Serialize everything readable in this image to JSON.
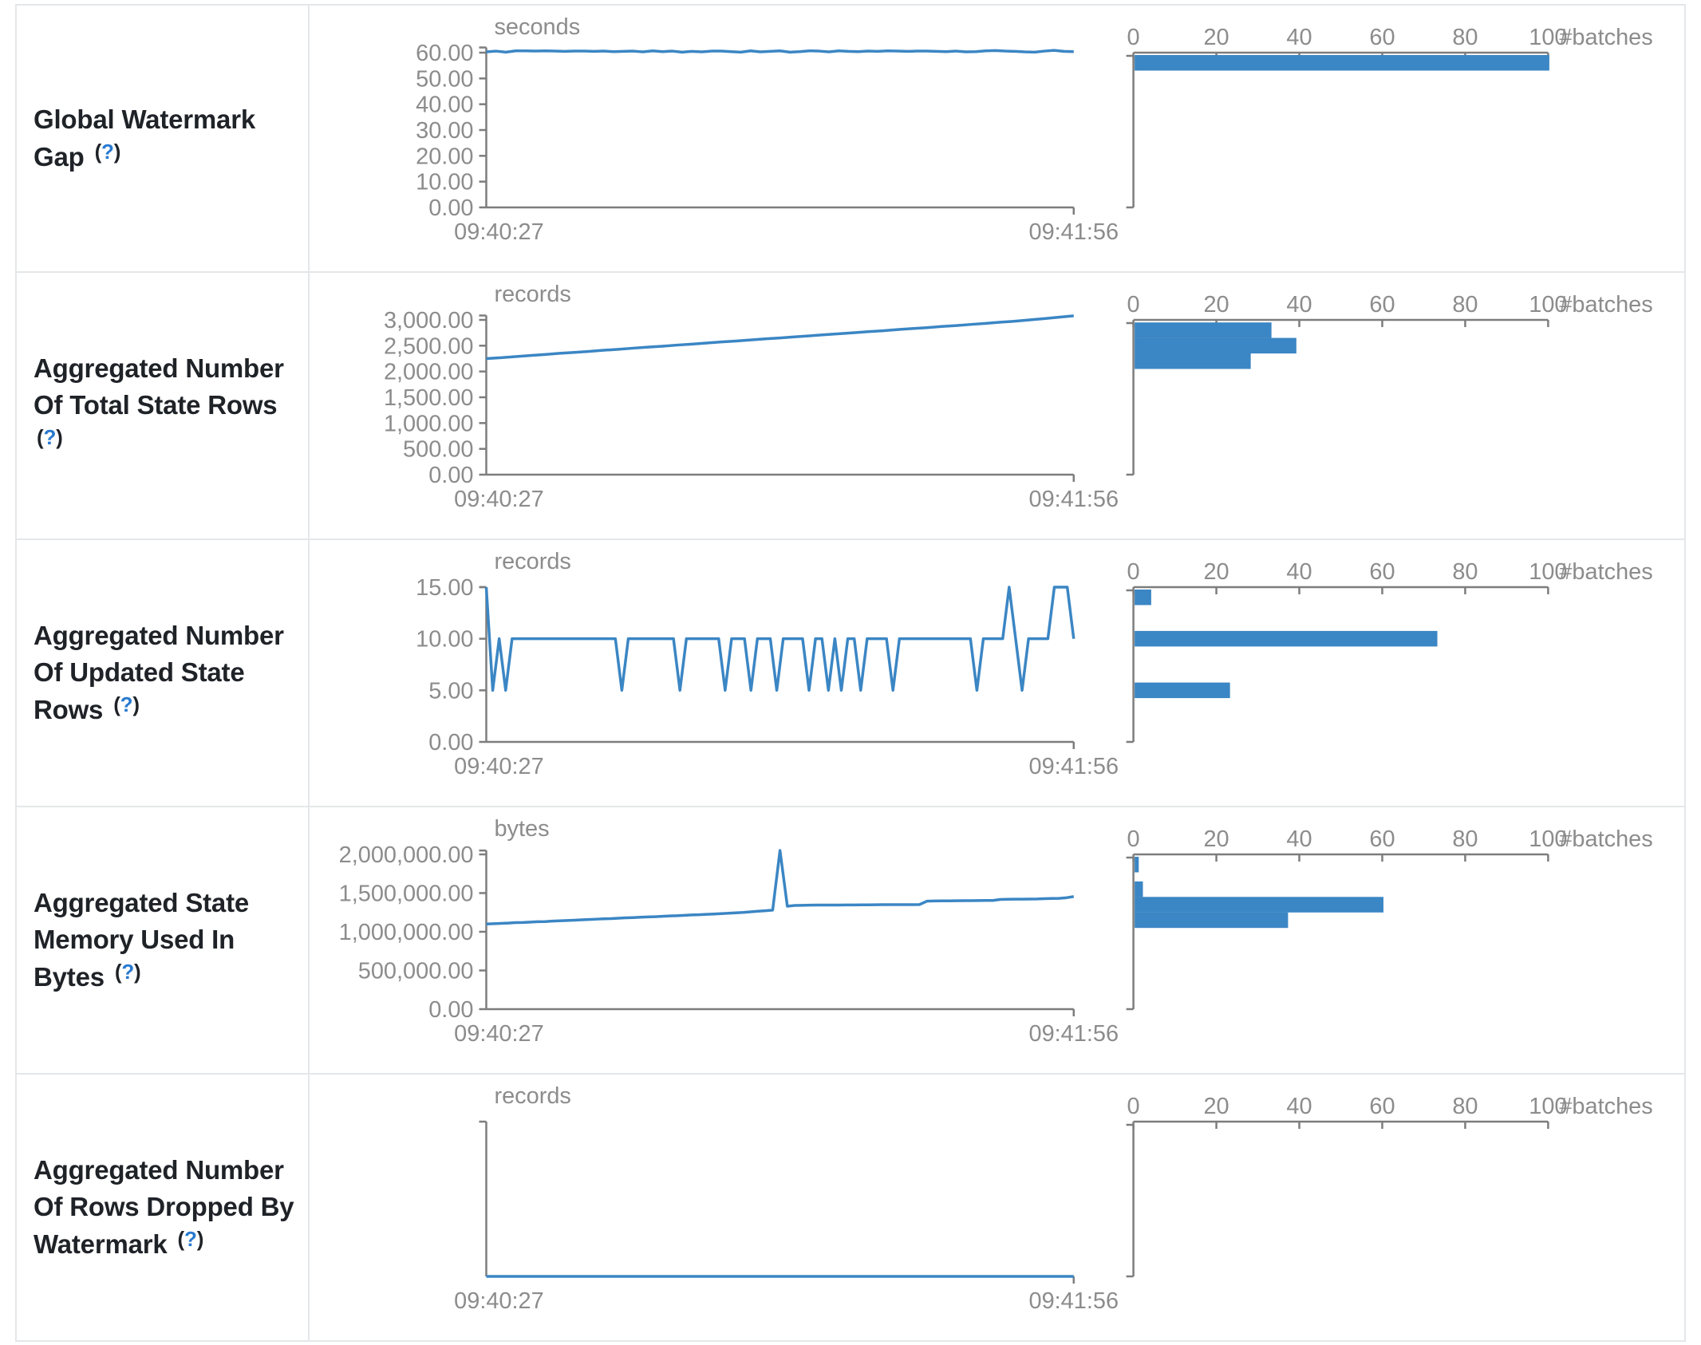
{
  "strings": {
    "paren_open": "(",
    "question": "?",
    "paren_close": ")"
  },
  "colors": {
    "accent": "#3b86c4",
    "axis": "#7d7d7d",
    "tick_text": "#8c8c8c",
    "label_text": "#1f2328",
    "help_blue": "#2779d0",
    "border": "#e4e7e9"
  },
  "histogram_axis": {
    "ticks": [
      {
        "value": 0,
        "label": "0"
      },
      {
        "value": 20,
        "label": "20"
      },
      {
        "value": 40,
        "label": "40"
      },
      {
        "value": 60,
        "label": "60"
      },
      {
        "value": 80,
        "label": "80"
      },
      {
        "value": 100,
        "label": "100"
      }
    ],
    "max": 100,
    "label": "#batches"
  },
  "rows": [
    {
      "label": "Global Watermark Gap",
      "chart_data": {
        "type": "line+histogram",
        "unit": "seconds",
        "x_range": [
          "09:40:27",
          "09:41:56"
        ],
        "y_ticks": [
          {
            "value": 60,
            "label": "60.00"
          },
          {
            "value": 50,
            "label": "50.00"
          },
          {
            "value": 40,
            "label": "40.00"
          },
          {
            "value": 30,
            "label": "30.00"
          },
          {
            "value": 20,
            "label": "20.00"
          },
          {
            "value": 10,
            "label": "10.00"
          },
          {
            "value": 0,
            "label": "0.00"
          }
        ],
        "domain_top": 62,
        "values": [
          60.3,
          60.6,
          60.2,
          60.7,
          60.7,
          60.6,
          60.7,
          60.6,
          60.5,
          60.6,
          60.6,
          60.5,
          60.6,
          60.4,
          60.5,
          60.6,
          60.3,
          60.7,
          60.4,
          60.6,
          60.2,
          60.5,
          60.3,
          60.6,
          60.6,
          60.4,
          60.2,
          60.7,
          60.3,
          60.5,
          60.7,
          60.2,
          60.4,
          60.7,
          60.6,
          60.3,
          60.7,
          60.5,
          60.4,
          60.6,
          60.5,
          60.7,
          60.6,
          60.5,
          60.6,
          60.6,
          60.5,
          60.4,
          60.6,
          60.3,
          60.4,
          60.7,
          60.8,
          60.6,
          60.5,
          60.3,
          60.2,
          60.6,
          60.9,
          60.5,
          60.4
        ],
        "histogram": {
          "bins": [
            {
              "center": 59.5,
              "count": 100
            }
          ]
        }
      }
    },
    {
      "label": "Aggregated Number Of Total State Rows",
      "chart_data": {
        "type": "line+histogram",
        "unit": "records",
        "x_range": [
          "09:40:27",
          "09:41:56"
        ],
        "y_ticks": [
          {
            "value": 3000,
            "label": "3,000.00"
          },
          {
            "value": 2500,
            "label": "2,500.00"
          },
          {
            "value": 2000,
            "label": "2,000.00"
          },
          {
            "value": 1500,
            "label": "1,500.00"
          },
          {
            "value": 1000,
            "label": "1,000.00"
          },
          {
            "value": 500,
            "label": "500.00"
          },
          {
            "value": 0,
            "label": "0.00"
          }
        ],
        "domain_top": 3085,
        "values": [
          2250,
          2268,
          2288,
          2310,
          2330,
          2352,
          2370,
          2390,
          2412,
          2430,
          2452,
          2472,
          2490,
          2512,
          2530,
          2552,
          2572,
          2590,
          2612,
          2632,
          2650,
          2672,
          2690,
          2712,
          2732,
          2750,
          2772,
          2790,
          2812,
          2832,
          2850,
          2872,
          2890,
          2912,
          2932,
          2955,
          2975,
          3000,
          3025,
          3052,
          3080
        ],
        "histogram": {
          "bins": [
            {
              "center": 2800,
              "count": 33
            },
            {
              "center": 2500,
              "count": 39
            },
            {
              "center": 2200,
              "count": 28
            }
          ]
        }
      }
    },
    {
      "label": "Aggregated Number Of Updated State Rows",
      "chart_data": {
        "type": "line+histogram",
        "unit": "records",
        "x_range": [
          "09:40:27",
          "09:41:56"
        ],
        "y_ticks": [
          {
            "value": 15,
            "label": "15.00"
          },
          {
            "value": 10,
            "label": "10.00"
          },
          {
            "value": 5,
            "label": "5.00"
          },
          {
            "value": 0,
            "label": "0.00"
          }
        ],
        "domain_top": 15,
        "values": [
          15,
          5,
          10,
          5,
          10,
          10,
          10,
          10,
          10,
          10,
          10,
          10,
          10,
          10,
          10,
          10,
          10,
          10,
          10,
          10,
          10,
          5,
          10,
          10,
          10,
          10,
          10,
          10,
          10,
          10,
          5,
          10,
          10,
          10,
          10,
          10,
          10,
          5,
          10,
          10,
          10,
          5,
          10,
          10,
          10,
          5,
          10,
          10,
          10,
          10,
          5,
          10,
          10,
          5,
          10,
          5,
          10,
          10,
          5,
          10,
          10,
          10,
          10,
          5,
          10,
          10,
          10,
          10,
          10,
          10,
          10,
          10,
          10,
          10,
          10,
          10,
          5,
          10,
          10,
          10,
          10,
          15,
          10,
          5,
          10,
          10,
          10,
          10,
          15,
          15,
          15,
          10
        ],
        "histogram": {
          "bins": [
            {
              "center": 15,
              "count": 4
            },
            {
              "center": 10,
              "count": 73
            },
            {
              "center": 5,
              "count": 23
            }
          ]
        }
      }
    },
    {
      "label": "Aggregated State Memory Used In Bytes",
      "chart_data": {
        "type": "line+histogram",
        "unit": "bytes",
        "x_range": [
          "09:40:27",
          "09:41:56"
        ],
        "y_ticks": [
          {
            "value": 2000000,
            "label": "2,000,000.00"
          },
          {
            "value": 1500000,
            "label": "1,500,000.00"
          },
          {
            "value": 1000000,
            "label": "1,000,000.00"
          },
          {
            "value": 500000,
            "label": "500,000.00"
          },
          {
            "value": 0,
            "label": "0.00"
          }
        ],
        "domain_top": 2050000,
        "values": [
          1100000,
          1105000,
          1108000,
          1112000,
          1118000,
          1120000,
          1125000,
          1130000,
          1132000,
          1138000,
          1142000,
          1145000,
          1150000,
          1155000,
          1158000,
          1163000,
          1168000,
          1170000,
          1175000,
          1180000,
          1183000,
          1188000,
          1192000,
          1195000,
          1200000,
          1205000,
          1208000,
          1213000,
          1218000,
          1220000,
          1225000,
          1230000,
          1235000,
          1240000,
          1245000,
          1250000,
          1258000,
          1265000,
          1272000,
          1280000,
          2050000,
          1330000,
          1340000,
          1342000,
          1344000,
          1345000,
          1345000,
          1346000,
          1346000,
          1347000,
          1347000,
          1348000,
          1348000,
          1349000,
          1350000,
          1350000,
          1350000,
          1351000,
          1351000,
          1352000,
          1395000,
          1398000,
          1400000,
          1400000,
          1401000,
          1402000,
          1402000,
          1403000,
          1404000,
          1405000,
          1418000,
          1420000,
          1421000,
          1422000,
          1423000,
          1424000,
          1428000,
          1430000,
          1432000,
          1440000,
          1455000
        ],
        "histogram": {
          "bins": [
            {
              "center": 1950000,
              "count": 1
            },
            {
              "center": 1550000,
              "count": 2
            },
            {
              "center": 1350000,
              "count": 60
            },
            {
              "center": 1150000,
              "count": 37
            }
          ]
        }
      }
    },
    {
      "label": "Aggregated Number Of Rows Dropped By Watermark",
      "chart_data": {
        "type": "line+histogram",
        "unit": "records",
        "x_range": [
          "09:40:27",
          "09:41:56"
        ],
        "y_ticks": [],
        "domain_top": null,
        "values": [
          0,
          0,
          0,
          0,
          0,
          0,
          0,
          0,
          0,
          0,
          0
        ],
        "histogram": {
          "bins": []
        }
      }
    }
  ]
}
